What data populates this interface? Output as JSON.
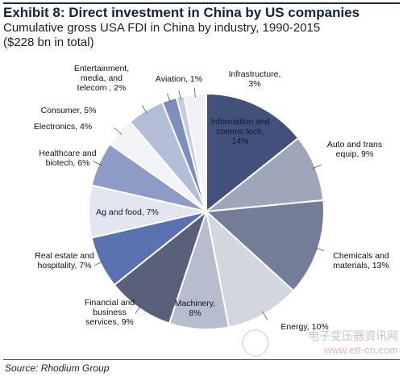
{
  "header": {
    "title": "Exhibit 8: Direct investment in China by US companies",
    "subtitle_line1": "Cumulative gross USA FDI in China by industry, 1990-2015",
    "subtitle_line2": "($228 bn in total)"
  },
  "source": "Source: Rhodium Group",
  "watermark": {
    "text": "电子变压器资讯网",
    "url": "www.ett-cn.com"
  },
  "chart_data": {
    "type": "pie",
    "title": "Exhibit 8: Direct investment in China by US companies",
    "subtitle": "Cumulative gross USA FDI in China by industry, 1990-2015 ($228 bn in total)",
    "unit": "%",
    "start": "12 o'clock",
    "direction": "clockwise",
    "slices": [
      {
        "label": [
          "Information and",
          "comms tech,",
          "14%"
        ],
        "category": "Information and comms tech",
        "value": 14,
        "color": "#44507c"
      },
      {
        "label": [
          "Auto and trans",
          "equip, 9%"
        ],
        "category": "Auto and trans equip",
        "value": 9,
        "color": "#9ea6b9"
      },
      {
        "label": [
          "Chemicals and",
          "materials, 13%"
        ],
        "category": "Chemicals and materials",
        "value": 13,
        "color": "#737d98"
      },
      {
        "label": [
          "Energy, 10%"
        ],
        "category": "Energy",
        "value": 10,
        "color": "#d3d6dd"
      },
      {
        "label": [
          "Machinery,",
          "8%"
        ],
        "category": "Machinery",
        "value": 8,
        "color": "#b7bdcc"
      },
      {
        "label": [
          "Financial and",
          "business",
          "services, 9%"
        ],
        "category": "Financial and business services",
        "value": 9,
        "color": "#58607a"
      },
      {
        "label": [
          "Real estate and",
          "hospitality, 7%"
        ],
        "category": "Real estate and hospitality",
        "value": 7,
        "color": "#5a72b0"
      },
      {
        "label": [
          "Ag and food, 7%"
        ],
        "category": "Ag and food",
        "value": 7,
        "color": "#e3e6f0"
      },
      {
        "label": [
          "Healthcare and",
          "biotech, 6%"
        ],
        "category": "Healthcare and biotech",
        "value": 6,
        "color": "#8e9cc5"
      },
      {
        "label": [
          "Electronics, 4%"
        ],
        "category": "Electronics",
        "value": 4,
        "color": "#f2f3f6"
      },
      {
        "label": [
          "Consumer, 5%"
        ],
        "category": "Consumer",
        "value": 5,
        "color": "#b4bdd7"
      },
      {
        "label": [
          "Entertainment,",
          "media, and",
          "telecom , 2%"
        ],
        "category": "Entertainment, media, and telecom",
        "value": 2,
        "color": "#7d8fbf"
      },
      {
        "label": [
          "Aviation, 1%"
        ],
        "category": "Aviation",
        "value": 1,
        "color": "#c5ccde"
      },
      {
        "label": [
          "Infrastructure,",
          "3%"
        ],
        "category": "Infrastructure",
        "value": 3,
        "color": "#eff1f6"
      }
    ]
  }
}
